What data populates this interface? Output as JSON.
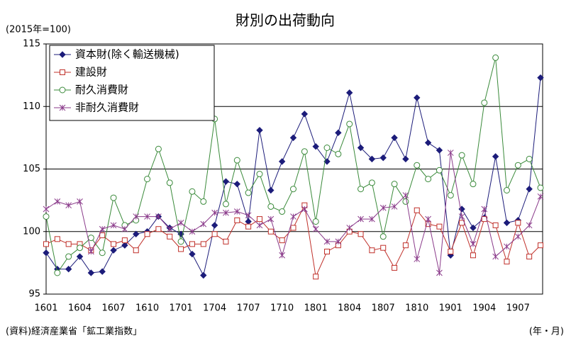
{
  "chart_data": {
    "type": "line",
    "title": "財別の出荷動向",
    "subtitle": "(2015年=100)",
    "source": "(資料)経済産業省「鉱工業指数」",
    "x_label": "(年・月)",
    "categories": [
      "1601",
      null,
      null,
      "1604",
      null,
      null,
      "1607",
      null,
      null,
      "1610",
      null,
      null,
      "1701",
      null,
      null,
      "1704",
      null,
      null,
      "1707",
      null,
      null,
      "1710",
      null,
      null,
      "1801",
      null,
      null,
      "1804",
      null,
      null,
      "1807",
      null,
      null,
      "1810",
      null,
      null,
      "1901",
      null,
      null,
      "1904",
      null,
      null,
      "1907",
      null,
      null
    ],
    "ylim": [
      95,
      115
    ],
    "yticks": [
      95,
      100,
      105,
      110,
      115
    ],
    "grid": true,
    "legend": "upper left",
    "series": [
      {
        "name": "資本財(除く輸送機械)",
        "color": "#1c1c7a",
        "marker": "diamond",
        "values": [
          98.3,
          97.0,
          97.0,
          98.0,
          96.7,
          96.8,
          98.5,
          98.9,
          99.8,
          100.0,
          101.2,
          100.3,
          99.8,
          98.2,
          96.5,
          100.5,
          104.0,
          103.8,
          100.8,
          108.1,
          103.3,
          105.6,
          107.5,
          109.4,
          106.8,
          105.6,
          107.9,
          111.1,
          106.7,
          105.8,
          105.9,
          107.5,
          105.8,
          110.7,
          107.1,
          106.5,
          98.1,
          101.8,
          100.3,
          101.1,
          106.0,
          100.7,
          100.9,
          103.4,
          112.3
        ]
      },
      {
        "name": "建設財",
        "color": "#c0302a",
        "marker": "square",
        "values": [
          99.0,
          99.4,
          99.0,
          99.0,
          98.5,
          99.7,
          99.0,
          99.3,
          98.5,
          99.8,
          100.2,
          99.6,
          98.6,
          99.0,
          99.0,
          99.8,
          99.2,
          100.9,
          100.4,
          101.0,
          100.0,
          99.3,
          100.3,
          102.1,
          96.4,
          98.4,
          98.9,
          100.0,
          99.8,
          98.5,
          98.7,
          97.1,
          98.9,
          101.7,
          100.6,
          100.4,
          98.4,
          100.7,
          98.1,
          101.0,
          100.5,
          97.6,
          100.7,
          98.0,
          98.9
        ]
      },
      {
        "name": "耐久消費財",
        "color": "#3a8a3a",
        "marker": "circle",
        "values": [
          101.2,
          96.7,
          98.0,
          98.7,
          99.5,
          98.3,
          102.7,
          100.5,
          100.9,
          104.2,
          106.6,
          103.9,
          99.2,
          103.2,
          102.4,
          109.0,
          102.2,
          105.7,
          103.1,
          104.6,
          102.0,
          101.6,
          103.4,
          106.4,
          100.8,
          106.7,
          106.2,
          108.6,
          103.4,
          103.9,
          99.6,
          103.8,
          102.4,
          105.3,
          104.2,
          104.9,
          102.9,
          106.1,
          103.8,
          110.3,
          113.9,
          103.3,
          105.3,
          105.8,
          103.5
        ]
      },
      {
        "name": "非耐久消費財",
        "color": "#8a3a8a",
        "marker": "x",
        "values": [
          101.8,
          102.4,
          102.1,
          102.4,
          98.4,
          100.2,
          100.5,
          100.2,
          101.2,
          101.2,
          101.2,
          100.2,
          100.7,
          100.0,
          100.6,
          101.5,
          101.5,
          101.6,
          101.3,
          100.5,
          101.0,
          98.1,
          101.2,
          101.8,
          100.2,
          99.2,
          99.2,
          100.3,
          101.0,
          101.0,
          101.9,
          102.0,
          102.9,
          97.8,
          101.0,
          96.7,
          106.3,
          101.2,
          99.0,
          101.8,
          98.0,
          98.8,
          99.6,
          100.5,
          102.8
        ]
      }
    ]
  }
}
